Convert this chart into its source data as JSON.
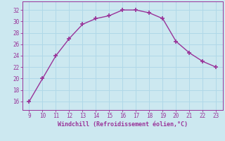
{
  "x": [
    9,
    10,
    11,
    12,
    13,
    14,
    15,
    16,
    17,
    18,
    19,
    20,
    21,
    22,
    23
  ],
  "y": [
    16,
    20,
    24,
    27,
    29.5,
    30.5,
    31,
    32,
    32,
    31.5,
    30.5,
    26.5,
    24.5,
    23,
    22
  ],
  "line_color": "#993399",
  "marker": "+",
  "marker_color": "#993399",
  "bg_color": "#cce8f0",
  "grid_color": "#b0d8e8",
  "xlabel": "Windchill (Refroidissement éolien,°C)",
  "xlabel_color": "#993399",
  "tick_color": "#993399",
  "xlim": [
    8.5,
    23.5
  ],
  "ylim": [
    14.5,
    33.5
  ],
  "xticks": [
    9,
    10,
    11,
    12,
    13,
    14,
    15,
    16,
    17,
    18,
    19,
    20,
    21,
    22,
    23
  ],
  "yticks": [
    16,
    18,
    20,
    22,
    24,
    26,
    28,
    30,
    32
  ]
}
